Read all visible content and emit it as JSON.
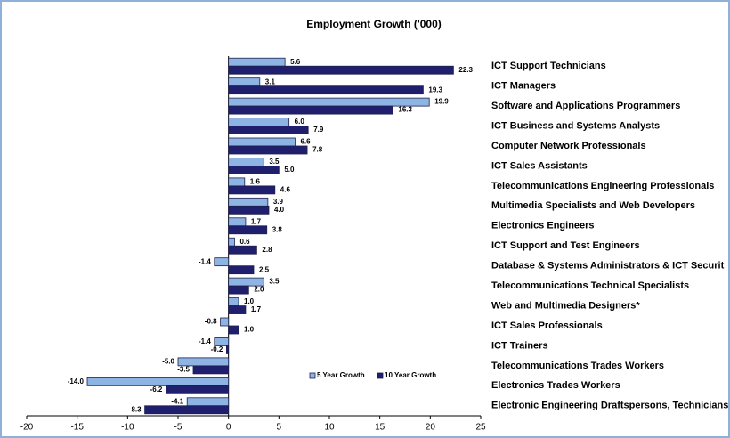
{
  "chart_data": {
    "type": "bar",
    "orientation": "horizontal",
    "title": "Employment Growth ('000)",
    "categories": [
      "ICT Support Technicians",
      "ICT Managers",
      "Software and Applications Programmers",
      "ICT Business and Systems Analysts",
      "Computer Network Professionals",
      "ICT Sales Assistants",
      "Telecommunications Engineering Professionals",
      "Multimedia Specialists and Web Developers",
      "Electronics Engineers",
      "ICT Support and Test Engineers",
      "Database & Systems Administrators & ICT Securit",
      "Telecommunications Technical Specialists",
      "Web and Multimedia Designers*",
      "ICT Sales Professionals",
      "ICT Trainers",
      "Telecommunications Trades Workers",
      "Electronics Trades Workers",
      "Electronic Engineering Draftspersons, Technicians"
    ],
    "series": [
      {
        "name": "5 Year Growth",
        "color": "#8db4e2",
        "values": [
          5.6,
          3.1,
          19.9,
          6.0,
          6.6,
          3.5,
          1.6,
          3.9,
          1.7,
          0.6,
          -1.4,
          3.5,
          1.0,
          -0.8,
          -1.4,
          -5.0,
          -14.0,
          -4.1
        ],
        "value_labels": [
          "5.6",
          "3.1",
          "19.9",
          "6.0",
          "6.6",
          "3.5",
          "1.6",
          "3.9",
          "1.7",
          "0.6",
          "-1.4",
          "3.5",
          "1.0",
          "-0.8",
          "-1.4",
          "-5.0",
          "-14.0",
          "-4.1"
        ]
      },
      {
        "name": "10 Year Growth",
        "color": "#1f1f6e",
        "values": [
          22.3,
          19.3,
          16.3,
          7.9,
          7.8,
          5.0,
          4.6,
          4.0,
          3.8,
          2.8,
          2.5,
          2.0,
          1.7,
          1.0,
          -0.2,
          -3.5,
          -6.2,
          -8.3
        ],
        "value_labels": [
          "22.3",
          "19.3",
          "16.3",
          "7.9",
          "7.8",
          "5.0",
          "4.6",
          "4.0",
          "3.8",
          "2.8",
          "2.5",
          "2.0",
          "1.7",
          "1.0",
          "-0.2",
          "-3.5",
          "-6.2",
          "-8.3"
        ]
      }
    ],
    "xlim": [
      -20,
      25
    ],
    "xticks": [
      -20,
      -15,
      -10,
      -5,
      0,
      5,
      10,
      15,
      20,
      25
    ]
  }
}
